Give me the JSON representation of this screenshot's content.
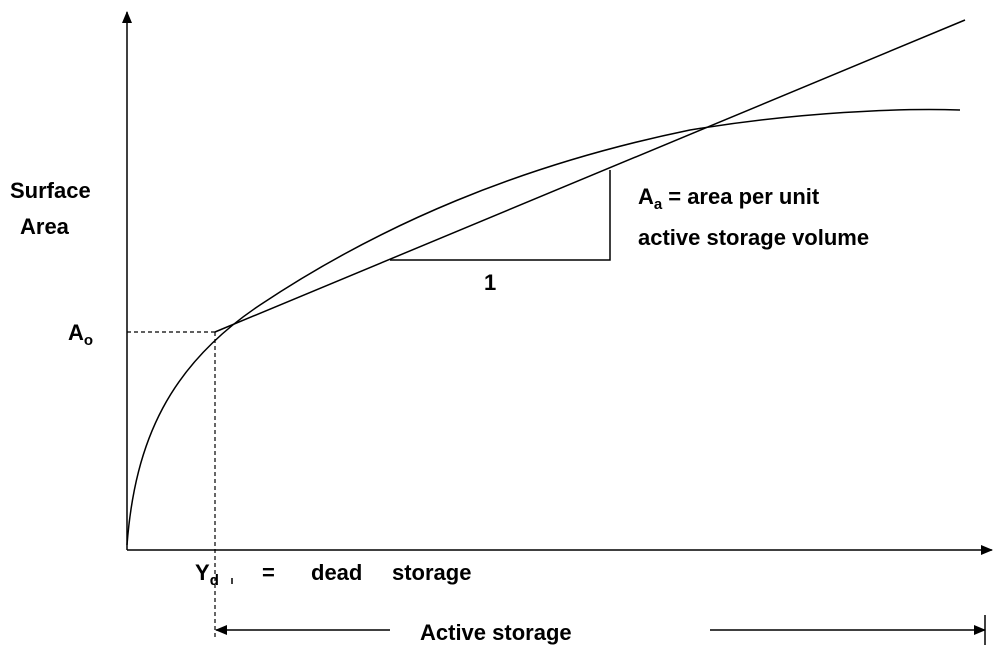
{
  "axis_label": [
    "Surface",
    "Area"
  ],
  "initial_area": {
    "symbol": "A",
    "subscript": "o"
  },
  "slope_note": {
    "symbol": "A",
    "subscript": "a",
    "lines": [
      "= area per unit",
      "active storage volume"
    ]
  },
  "slope_run": "1",
  "dead_storage": {
    "symbol": "Y",
    "subscript": "d",
    "equals": "=",
    "text": "dead",
    "text2": "storage"
  },
  "active_storage": "Active storage"
}
